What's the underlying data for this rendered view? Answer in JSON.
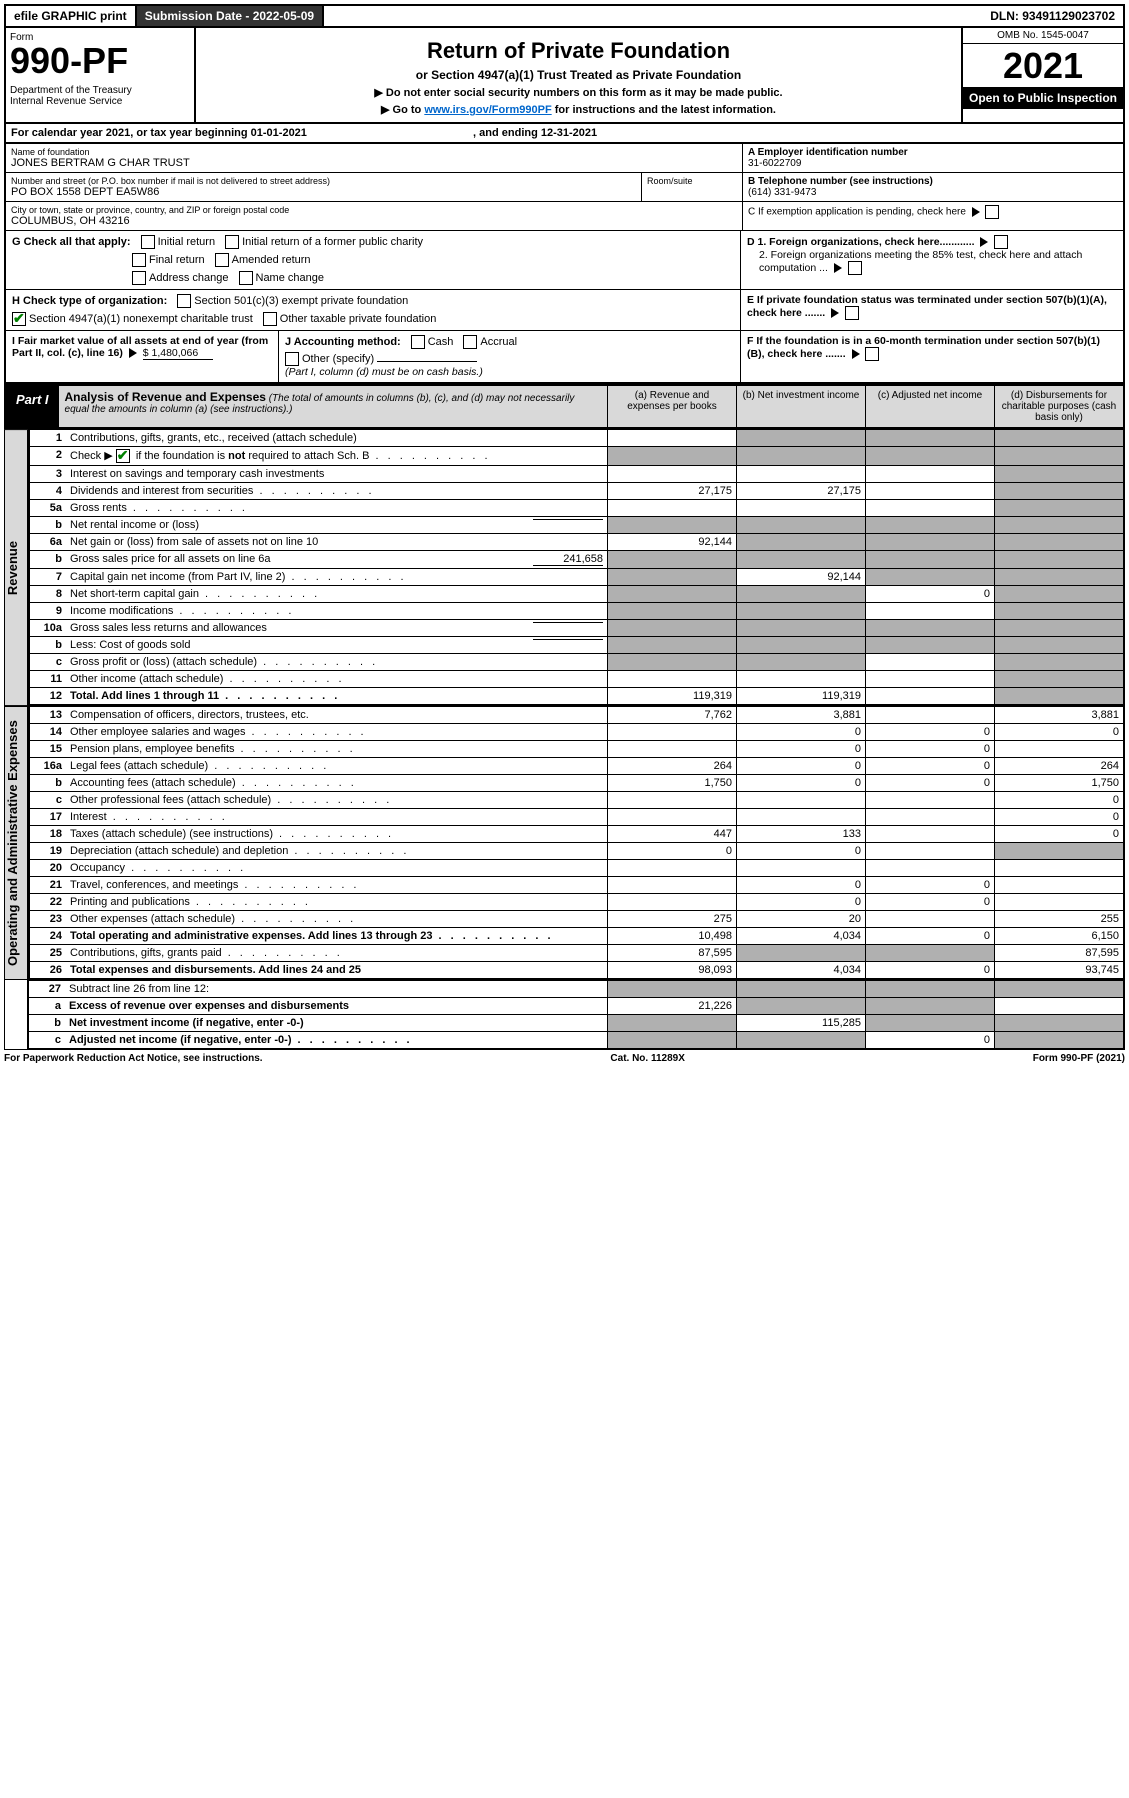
{
  "topbar": {
    "efile": "efile GRAPHIC print",
    "sub_label": "Submission Date - 2022-05-09",
    "dln": "DLN: 93491129023702"
  },
  "header": {
    "form_word": "Form",
    "form_no": "990-PF",
    "dept": "Department of the Treasury",
    "irs": "Internal Revenue Service",
    "title": "Return of Private Foundation",
    "subtitle": "or Section 4947(a)(1) Trust Treated as Private Foundation",
    "instr1": "▶ Do not enter social security numbers on this form as it may be made public.",
    "instr2_pre": "▶ Go to ",
    "instr2_link": "www.irs.gov/Form990PF",
    "instr2_post": " for instructions and the latest information.",
    "omb": "OMB No. 1545-0047",
    "year": "2021",
    "inspection": "Open to Public Inspection"
  },
  "cal": {
    "line": "For calendar year 2021, or tax year beginning 01-01-2021",
    "end": ", and ending 12-31-2021"
  },
  "name": {
    "label": "Name of foundation",
    "value": "JONES BERTRAM G CHAR TRUST",
    "addr_label": "Number and street (or P.O. box number if mail is not delivered to street address)",
    "addr": "PO BOX 1558 DEPT EA5W86",
    "room": "Room/suite",
    "city_label": "City or town, state or province, country, and ZIP or foreign postal code",
    "city": "COLUMBUS, OH  43216"
  },
  "right": {
    "a_label": "A Employer identification number",
    "a_val": "31-6022709",
    "b_label": "B Telephone number (see instructions)",
    "b_val": "(614) 331-9473",
    "c_label": "C If exemption application is pending, check here",
    "d1": "D 1. Foreign organizations, check here............",
    "d2": "2. Foreign organizations meeting the 85% test, check here and attach computation ...",
    "e": "E  If private foundation status was terminated under section 507(b)(1)(A), check here .......",
    "f": "F  If the foundation is in a 60-month termination under section 507(b)(1)(B), check here .......",
    "g_label": "G Check all that apply:",
    "g_opts": [
      "Initial return",
      "Initial return of a former public charity",
      "Final return",
      "Amended return",
      "Address change",
      "Name change"
    ],
    "h_label": "H Check type of organization:",
    "h1": "Section 501(c)(3) exempt private foundation",
    "h2": "Section 4947(a)(1) nonexempt charitable trust",
    "h3": "Other taxable private foundation",
    "i_label": "I Fair market value of all assets at end of year (from Part II, col. (c), line 16)",
    "i_val": "$  1,480,066",
    "j_label": "J Accounting method:",
    "j_opts": [
      "Cash",
      "Accrual",
      "Other (specify)"
    ],
    "j_note": "(Part I, column (d) must be on cash basis.)"
  },
  "part1": {
    "label": "Part I",
    "title": "Analysis of Revenue and Expenses",
    "note": "(The total of amounts in columns (b), (c), and (d) may not necessarily equal the amounts in column (a) (see instructions).)",
    "cols": {
      "a": "(a)   Revenue and expenses per books",
      "b": "(b)   Net investment income",
      "c": "(c)   Adjusted net income",
      "d": "(d)   Disbursements for charitable purposes (cash basis only)"
    }
  },
  "sidelabels": {
    "rev": "Revenue",
    "exp": "Operating and Administrative Expenses"
  },
  "lines": [
    {
      "n": "1",
      "label": "Contributions, gifts, grants, etc., received (attach schedule)",
      "a": "",
      "b": "shade",
      "c": "shade",
      "d": "shade"
    },
    {
      "n": "2",
      "label": "Check ▶ ☑ if the foundation is not required to attach Sch. B",
      "a": "shade",
      "b": "shade",
      "c": "shade",
      "d": "shade",
      "dots": true,
      "checked": true
    },
    {
      "n": "3",
      "label": "Interest on savings and temporary cash investments",
      "a": "",
      "b": "",
      "c": "",
      "d": "shade"
    },
    {
      "n": "4",
      "label": "Dividends and interest from securities",
      "a": "27,175",
      "b": "27,175",
      "c": "",
      "d": "shade",
      "dots": true
    },
    {
      "n": "5a",
      "label": "Gross rents",
      "a": "",
      "b": "",
      "c": "",
      "d": "shade",
      "dots": true
    },
    {
      "n": "b",
      "label": "Net rental income or (loss)",
      "a": "shade",
      "b": "shade",
      "c": "shade",
      "d": "shade",
      "inline": ""
    },
    {
      "n": "6a",
      "label": "Net gain or (loss) from sale of assets not on line 10",
      "a": "92,144",
      "b": "shade",
      "c": "shade",
      "d": "shade"
    },
    {
      "n": "b",
      "label": "Gross sales price for all assets on line 6a",
      "a": "shade",
      "b": "shade",
      "c": "shade",
      "d": "shade",
      "inline": "241,658"
    },
    {
      "n": "7",
      "label": "Capital gain net income (from Part IV, line 2)",
      "a": "shade",
      "b": "92,144",
      "c": "shade",
      "d": "shade",
      "dots": true
    },
    {
      "n": "8",
      "label": "Net short-term capital gain",
      "a": "shade",
      "b": "shade",
      "c": "0",
      "d": "shade",
      "dots": true
    },
    {
      "n": "9",
      "label": "Income modifications",
      "a": "shade",
      "b": "shade",
      "c": "",
      "d": "shade",
      "dots": true
    },
    {
      "n": "10a",
      "label": "Gross sales less returns and allowances",
      "a": "shade",
      "b": "shade",
      "c": "shade",
      "d": "shade",
      "inline": ""
    },
    {
      "n": "b",
      "label": "Less: Cost of goods sold",
      "a": "shade",
      "b": "shade",
      "c": "shade",
      "d": "shade",
      "inline": "",
      "dots": true
    },
    {
      "n": "c",
      "label": "Gross profit or (loss) (attach schedule)",
      "a": "shade",
      "b": "shade",
      "c": "",
      "d": "shade",
      "dots": true
    },
    {
      "n": "11",
      "label": "Other income (attach schedule)",
      "a": "",
      "b": "",
      "c": "",
      "d": "shade",
      "dots": true
    },
    {
      "n": "12",
      "label": "Total. Add lines 1 through 11",
      "a": "119,319",
      "b": "119,319",
      "c": "",
      "d": "shade",
      "dots": true,
      "bold": true
    }
  ],
  "exp_lines": [
    {
      "n": "13",
      "label": "Compensation of officers, directors, trustees, etc.",
      "a": "7,762",
      "b": "3,881",
      "c": "",
      "d": "3,881"
    },
    {
      "n": "14",
      "label": "Other employee salaries and wages",
      "a": "",
      "b": "0",
      "c": "0",
      "d": "0",
      "dots": true
    },
    {
      "n": "15",
      "label": "Pension plans, employee benefits",
      "a": "",
      "b": "0",
      "c": "0",
      "d": "",
      "dots": true
    },
    {
      "n": "16a",
      "label": "Legal fees (attach schedule)",
      "a": "264",
      "b": "0",
      "c": "0",
      "d": "264",
      "dots": true
    },
    {
      "n": "b",
      "label": "Accounting fees (attach schedule)",
      "a": "1,750",
      "b": "0",
      "c": "0",
      "d": "1,750",
      "dots": true
    },
    {
      "n": "c",
      "label": "Other professional fees (attach schedule)",
      "a": "",
      "b": "",
      "c": "",
      "d": "0",
      "dots": true
    },
    {
      "n": "17",
      "label": "Interest",
      "a": "",
      "b": "",
      "c": "",
      "d": "0",
      "dots": true
    },
    {
      "n": "18",
      "label": "Taxes (attach schedule) (see instructions)",
      "a": "447",
      "b": "133",
      "c": "",
      "d": "0",
      "dots": true
    },
    {
      "n": "19",
      "label": "Depreciation (attach schedule) and depletion",
      "a": "0",
      "b": "0",
      "c": "",
      "d": "shade",
      "dots": true
    },
    {
      "n": "20",
      "label": "Occupancy",
      "a": "",
      "b": "",
      "c": "",
      "d": "",
      "dots": true
    },
    {
      "n": "21",
      "label": "Travel, conferences, and meetings",
      "a": "",
      "b": "0",
      "c": "0",
      "d": "",
      "dots": true
    },
    {
      "n": "22",
      "label": "Printing and publications",
      "a": "",
      "b": "0",
      "c": "0",
      "d": "",
      "dots": true
    },
    {
      "n": "23",
      "label": "Other expenses (attach schedule)",
      "a": "275",
      "b": "20",
      "c": "",
      "d": "255",
      "dots": true
    },
    {
      "n": "24",
      "label": "Total operating and administrative expenses. Add lines 13 through 23",
      "a": "10,498",
      "b": "4,034",
      "c": "0",
      "d": "6,150",
      "dots": true,
      "bold": true
    },
    {
      "n": "25",
      "label": "Contributions, gifts, grants paid",
      "a": "87,595",
      "b": "shade",
      "c": "shade",
      "d": "87,595",
      "dots": true
    },
    {
      "n": "26",
      "label": "Total expenses and disbursements. Add lines 24 and 25",
      "a": "98,093",
      "b": "4,034",
      "c": "0",
      "d": "93,745",
      "bold": true
    }
  ],
  "bottom_lines": [
    {
      "n": "27",
      "label": "Subtract line 26 from line 12:",
      "a": "shade",
      "b": "shade",
      "c": "shade",
      "d": "shade"
    },
    {
      "n": "a",
      "label": "Excess of revenue over expenses and disbursements",
      "a": "21,226",
      "b": "shade",
      "c": "shade",
      "d  d": "shade",
      "bold": true
    },
    {
      "n": "b",
      "label": "Net investment income (if negative, enter -0-)",
      "a": "shade",
      "b": "115,285",
      "c": "shade",
      "d": "shade",
      "bold": true
    },
    {
      "n": "c",
      "label": "Adjusted net income (if negative, enter -0-)",
      "a": "shade",
      "b": "shade",
      "c": "0",
      "d": "shade",
      "bold": true,
      "dots": true
    }
  ],
  "footer": {
    "left": "For Paperwork Reduction Act Notice, see instructions.",
    "mid": "Cat. No. 11289X",
    "right": "Form 990-PF (2021)"
  }
}
